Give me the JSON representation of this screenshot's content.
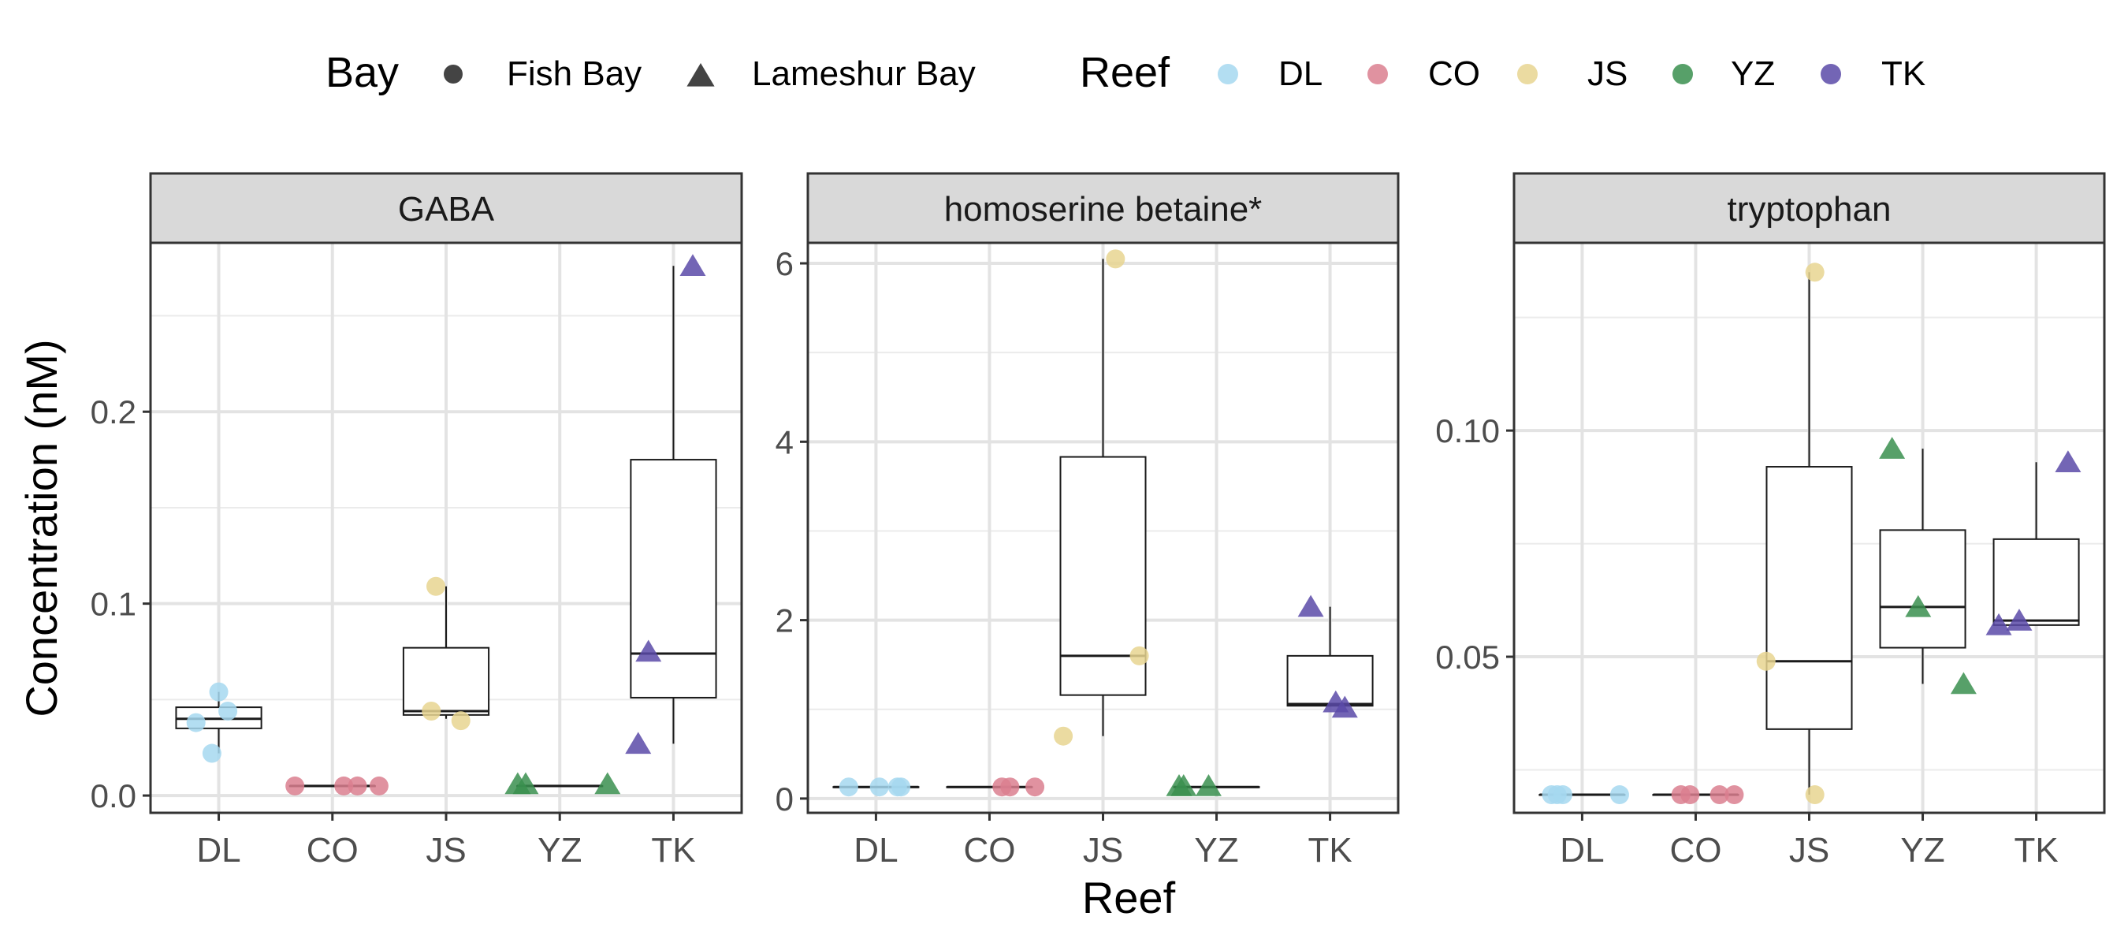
{
  "chart_data": {
    "type": "box",
    "xlabel": "Reef",
    "ylabel": "Concentration (nM)",
    "legend": {
      "position": "top",
      "shape_title": "Bay",
      "shape_items": [
        {
          "label": "Fish Bay",
          "shape": "circle"
        },
        {
          "label": "Lameshur Bay",
          "shape": "triangle"
        }
      ],
      "color_title": "Reef",
      "color_items": [
        {
          "label": "DL",
          "color": "#a6d8f0"
        },
        {
          "label": "CO",
          "color": "#db7f8f"
        },
        {
          "label": "JS",
          "color": "#e8d590"
        },
        {
          "label": "YZ",
          "color": "#3a8f4f"
        },
        {
          "label": "TK",
          "color": "#5a4aa8"
        }
      ]
    },
    "categories": [
      "DL",
      "CO",
      "JS",
      "YZ",
      "TK"
    ],
    "panels": [
      {
        "title": "GABA",
        "ylim": [
          -0.009,
          0.288
        ],
        "yticks": [
          0.0,
          0.1,
          0.2
        ],
        "ytick_labels": [
          "0.0",
          "0.1",
          "0.2"
        ],
        "minor_grid": [
          0.05,
          0.15,
          0.25
        ],
        "boxes": [
          {
            "category": "DL",
            "whisker_low": 0.022,
            "q1": 0.035,
            "median": 0.04,
            "q3": 0.046,
            "whisker_high": 0.054
          },
          {
            "category": "CO",
            "whisker_low": 0.005,
            "q1": 0.005,
            "median": 0.005,
            "q3": 0.005,
            "whisker_high": 0.005
          },
          {
            "category": "JS",
            "whisker_low": 0.04,
            "q1": 0.042,
            "median": 0.044,
            "q3": 0.077,
            "whisker_high": 0.109
          },
          {
            "category": "YZ",
            "whisker_low": 0.005,
            "q1": 0.005,
            "median": 0.005,
            "q3": 0.005,
            "whisker_high": 0.005
          },
          {
            "category": "TK",
            "whisker_low": 0.027,
            "q1": 0.051,
            "median": 0.074,
            "q3": 0.175,
            "whisker_high": 0.276
          }
        ],
        "points": [
          {
            "category": "DL",
            "bay": "Fish Bay",
            "jitter": -0.2,
            "y": 0.038
          },
          {
            "category": "DL",
            "bay": "Fish Bay",
            "jitter": -0.06,
            "y": 0.022
          },
          {
            "category": "DL",
            "bay": "Fish Bay",
            "jitter": 0.0,
            "y": 0.054
          },
          {
            "category": "DL",
            "bay": "Fish Bay",
            "jitter": 0.08,
            "y": 0.044
          },
          {
            "category": "CO",
            "bay": "Fish Bay",
            "jitter": -0.33,
            "y": 0.005
          },
          {
            "category": "CO",
            "bay": "Fish Bay",
            "jitter": 0.1,
            "y": 0.005
          },
          {
            "category": "CO",
            "bay": "Fish Bay",
            "jitter": 0.22,
            "y": 0.005
          },
          {
            "category": "CO",
            "bay": "Fish Bay",
            "jitter": 0.41,
            "y": 0.005
          },
          {
            "category": "JS",
            "bay": "Fish Bay",
            "jitter": -0.13,
            "y": 0.044
          },
          {
            "category": "JS",
            "bay": "Fish Bay",
            "jitter": -0.09,
            "y": 0.109
          },
          {
            "category": "JS",
            "bay": "Fish Bay",
            "jitter": 0.13,
            "y": 0.039
          },
          {
            "category": "YZ",
            "bay": "Lameshur Bay",
            "jitter": -0.37,
            "y": 0.006
          },
          {
            "category": "YZ",
            "bay": "Lameshur Bay",
            "jitter": -0.3,
            "y": 0.006
          },
          {
            "category": "YZ",
            "bay": "Lameshur Bay",
            "jitter": 0.42,
            "y": 0.006
          },
          {
            "category": "TK",
            "bay": "Lameshur Bay",
            "jitter": -0.31,
            "y": 0.027
          },
          {
            "category": "TK",
            "bay": "Lameshur Bay",
            "jitter": -0.22,
            "y": 0.075
          },
          {
            "category": "TK",
            "bay": "Lameshur Bay",
            "jitter": 0.17,
            "y": 0.276
          }
        ]
      },
      {
        "title": "homoserine betaine*",
        "ylim": [
          -0.16,
          6.23
        ],
        "yticks": [
          0,
          2,
          4,
          6
        ],
        "ytick_labels": [
          "0",
          "2",
          "4",
          "6"
        ],
        "minor_grid": [
          1,
          3,
          5
        ],
        "boxes": [
          {
            "category": "DL",
            "whisker_low": 0.13,
            "q1": 0.13,
            "median": 0.13,
            "q3": 0.13,
            "whisker_high": 0.13
          },
          {
            "category": "CO",
            "whisker_low": 0.13,
            "q1": 0.13,
            "median": 0.13,
            "q3": 0.13,
            "whisker_high": 0.13
          },
          {
            "category": "JS",
            "whisker_low": 0.7,
            "q1": 1.16,
            "median": 1.6,
            "q3": 3.83,
            "whisker_high": 6.05
          },
          {
            "category": "YZ",
            "whisker_low": 0.13,
            "q1": 0.13,
            "median": 0.13,
            "q3": 0.13,
            "whisker_high": 0.13
          },
          {
            "category": "TK",
            "whisker_low": 1.04,
            "q1": 1.04,
            "median": 1.06,
            "q3": 1.6,
            "whisker_high": 2.15
          }
        ],
        "points": [
          {
            "category": "DL",
            "bay": "Fish Bay",
            "jitter": -0.24,
            "y": 0.13
          },
          {
            "category": "DL",
            "bay": "Fish Bay",
            "jitter": 0.03,
            "y": 0.13
          },
          {
            "category": "DL",
            "bay": "Fish Bay",
            "jitter": 0.19,
            "y": 0.13
          },
          {
            "category": "DL",
            "bay": "Fish Bay",
            "jitter": 0.22,
            "y": 0.13
          },
          {
            "category": "CO",
            "bay": "Fish Bay",
            "jitter": 0.11,
            "y": 0.13
          },
          {
            "category": "CO",
            "bay": "Fish Bay",
            "jitter": 0.18,
            "y": 0.13
          },
          {
            "category": "CO",
            "bay": "Fish Bay",
            "jitter": 0.4,
            "y": 0.13
          },
          {
            "category": "JS",
            "bay": "Fish Bay",
            "jitter": -0.35,
            "y": 0.7
          },
          {
            "category": "JS",
            "bay": "Fish Bay",
            "jitter": 0.11,
            "y": 6.05
          },
          {
            "category": "JS",
            "bay": "Fish Bay",
            "jitter": 0.32,
            "y": 1.6
          },
          {
            "category": "YZ",
            "bay": "Lameshur Bay",
            "jitter": -0.33,
            "y": 0.14
          },
          {
            "category": "YZ",
            "bay": "Lameshur Bay",
            "jitter": -0.29,
            "y": 0.14
          },
          {
            "category": "YZ",
            "bay": "Lameshur Bay",
            "jitter": -0.07,
            "y": 0.14
          },
          {
            "category": "TK",
            "bay": "Lameshur Bay",
            "jitter": -0.17,
            "y": 2.15
          },
          {
            "category": "TK",
            "bay": "Lameshur Bay",
            "jitter": 0.05,
            "y": 1.08
          },
          {
            "category": "TK",
            "bay": "Lameshur Bay",
            "jitter": 0.13,
            "y": 1.02
          }
        ]
      },
      {
        "title": "tryptophan",
        "ylim": [
          0.0155,
          0.1415
        ],
        "yticks": [
          0.05,
          0.1
        ],
        "ytick_labels": [
          "0.05",
          "0.10"
        ],
        "minor_grid": [
          0.025,
          0.075,
          0.125
        ],
        "boxes": [
          {
            "category": "DL",
            "whisker_low": 0.0195,
            "q1": 0.0195,
            "median": 0.0195,
            "q3": 0.0195,
            "whisker_high": 0.0195
          },
          {
            "category": "CO",
            "whisker_low": 0.0195,
            "q1": 0.0195,
            "median": 0.0195,
            "q3": 0.0195,
            "whisker_high": 0.0195
          },
          {
            "category": "JS",
            "whisker_low": 0.0195,
            "q1": 0.034,
            "median": 0.049,
            "q3": 0.092,
            "whisker_high": 0.135
          },
          {
            "category": "YZ",
            "whisker_low": 0.044,
            "q1": 0.052,
            "median": 0.061,
            "q3": 0.078,
            "whisker_high": 0.096
          },
          {
            "category": "TK",
            "whisker_low": 0.057,
            "q1": 0.057,
            "median": 0.058,
            "q3": 0.076,
            "whisker_high": 0.093
          }
        ],
        "points": [
          {
            "category": "DL",
            "bay": "Fish Bay",
            "jitter": -0.27,
            "y": 0.0195
          },
          {
            "category": "DL",
            "bay": "Fish Bay",
            "jitter": -0.22,
            "y": 0.0195
          },
          {
            "category": "DL",
            "bay": "Fish Bay",
            "jitter": -0.17,
            "y": 0.0195
          },
          {
            "category": "DL",
            "bay": "Fish Bay",
            "jitter": 0.33,
            "y": 0.0195
          },
          {
            "category": "CO",
            "bay": "Fish Bay",
            "jitter": -0.13,
            "y": 0.0195
          },
          {
            "category": "CO",
            "bay": "Fish Bay",
            "jitter": -0.05,
            "y": 0.0195
          },
          {
            "category": "CO",
            "bay": "Fish Bay",
            "jitter": 0.21,
            "y": 0.0195
          },
          {
            "category": "CO",
            "bay": "Fish Bay",
            "jitter": 0.34,
            "y": 0.0195
          },
          {
            "category": "JS",
            "bay": "Fish Bay",
            "jitter": -0.38,
            "y": 0.049
          },
          {
            "category": "JS",
            "bay": "Fish Bay",
            "jitter": 0.05,
            "y": 0.0195
          },
          {
            "category": "JS",
            "bay": "Fish Bay",
            "jitter": 0.05,
            "y": 0.135
          },
          {
            "category": "YZ",
            "bay": "Lameshur Bay",
            "jitter": -0.27,
            "y": 0.096
          },
          {
            "category": "YZ",
            "bay": "Lameshur Bay",
            "jitter": -0.04,
            "y": 0.061
          },
          {
            "category": "YZ",
            "bay": "Lameshur Bay",
            "jitter": 0.36,
            "y": 0.044
          },
          {
            "category": "TK",
            "bay": "Lameshur Bay",
            "jitter": -0.33,
            "y": 0.057
          },
          {
            "category": "TK",
            "bay": "Lameshur Bay",
            "jitter": -0.15,
            "y": 0.058
          },
          {
            "category": "TK",
            "bay": "Lameshur Bay",
            "jitter": 0.28,
            "y": 0.093
          }
        ]
      }
    ]
  }
}
